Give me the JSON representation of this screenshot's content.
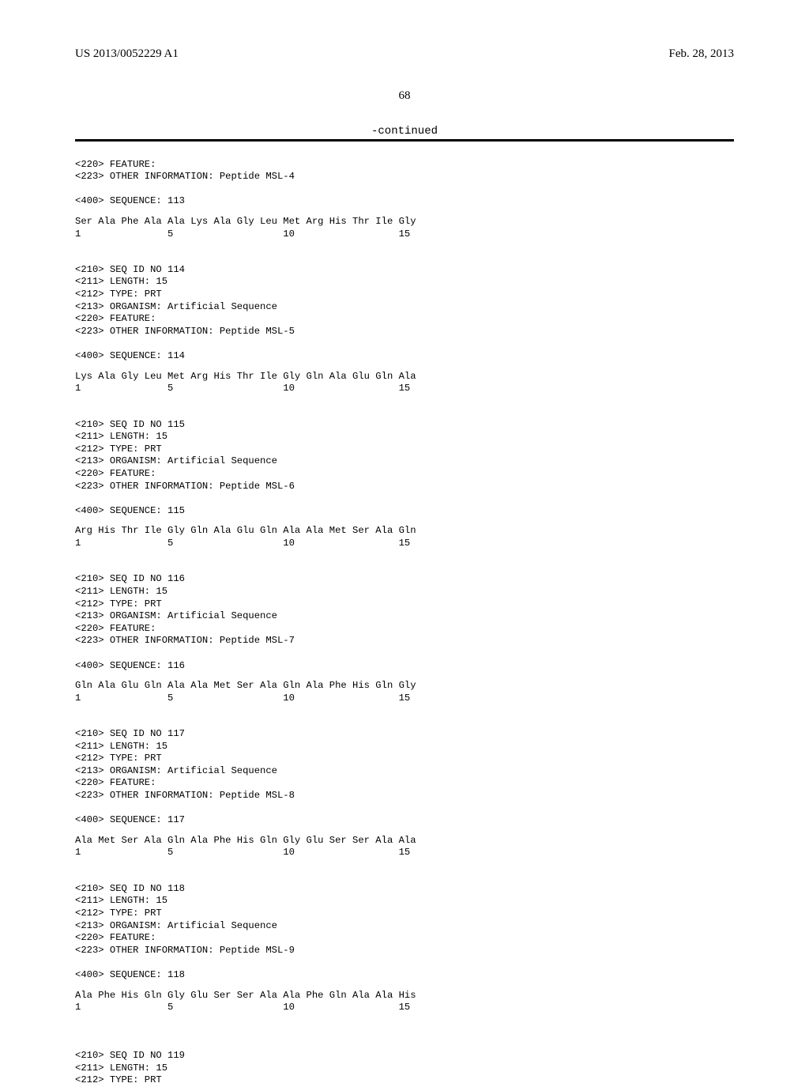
{
  "header": {
    "pub_number": "US 2013/0052229 A1",
    "pub_date": "Feb. 28, 2013"
  },
  "page_number": "68",
  "continued_label": "-continued",
  "monospace_font": "Courier New",
  "serif_font": "Times New Roman",
  "font_sizes": {
    "header": 15,
    "pagenum": 15,
    "continued": 14,
    "listing": 12.2
  },
  "colors": {
    "text": "#000000",
    "background": "#ffffff",
    "rule": "#000000"
  },
  "partial_top": {
    "lines": [
      "<220> FEATURE:",
      "<223> OTHER INFORMATION: Peptide MSL-4"
    ],
    "seq_label": "<400> SEQUENCE: 113",
    "residues": "Ser Ala Phe Ala Ala Lys Ala Gly Leu Met Arg His Thr Ile Gly",
    "numbers": "1               5                   10                  15"
  },
  "entries": [
    {
      "seq_id": "114",
      "length": "15",
      "type": "PRT",
      "organism": "Artificial Sequence",
      "peptide": "MSL-5",
      "residues": "Lys Ala Gly Leu Met Arg His Thr Ile Gly Gln Ala Glu Gln Ala",
      "numbers": "1               5                   10                  15"
    },
    {
      "seq_id": "115",
      "length": "15",
      "type": "PRT",
      "organism": "Artificial Sequence",
      "peptide": "MSL-6",
      "residues": "Arg His Thr Ile Gly Gln Ala Glu Gln Ala Ala Met Ser Ala Gln",
      "numbers": "1               5                   10                  15"
    },
    {
      "seq_id": "116",
      "length": "15",
      "type": "PRT",
      "organism": "Artificial Sequence",
      "peptide": "MSL-7",
      "residues": "Gln Ala Glu Gln Ala Ala Met Ser Ala Gln Ala Phe His Gln Gly",
      "numbers": "1               5                   10                  15"
    },
    {
      "seq_id": "117",
      "length": "15",
      "type": "PRT",
      "organism": "Artificial Sequence",
      "peptide": "MSL-8",
      "residues": "Ala Met Ser Ala Gln Ala Phe His Gln Gly Glu Ser Ser Ala Ala",
      "numbers": "1               5                   10                  15"
    },
    {
      "seq_id": "118",
      "length": "15",
      "type": "PRT",
      "organism": "Artificial Sequence",
      "peptide": "MSL-9",
      "residues": "Ala Phe His Gln Gly Glu Ser Ser Ala Ala Phe Gln Ala Ala His",
      "numbers": "1               5                   10                  15"
    }
  ],
  "partial_bottom": {
    "seq_id": "119",
    "length": "15",
    "type": "PRT"
  }
}
